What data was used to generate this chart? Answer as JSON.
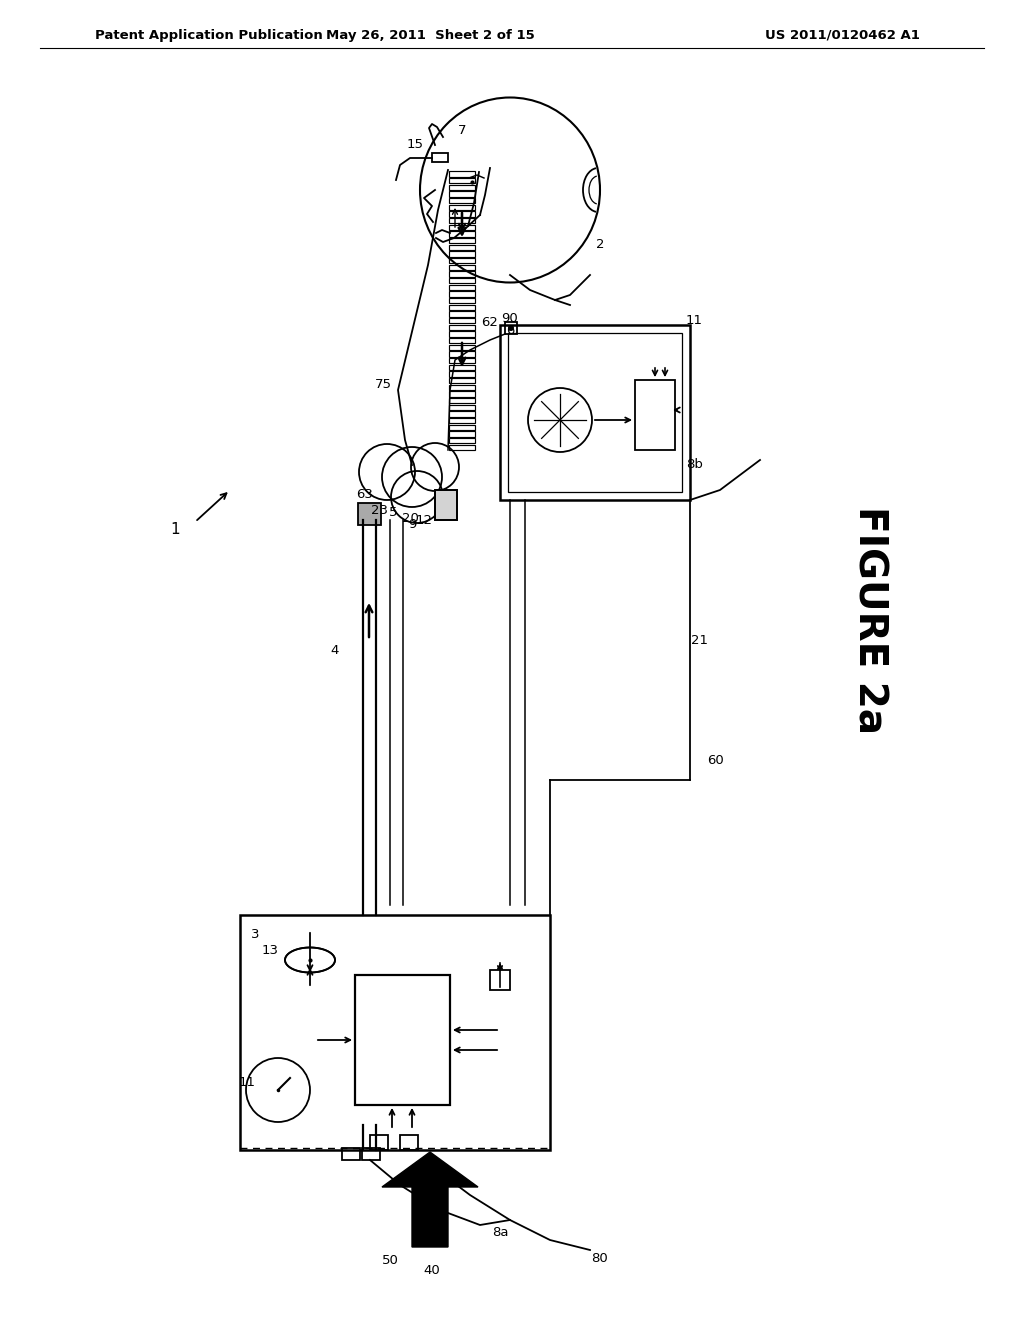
{
  "bg_color": "#ffffff",
  "header_left": "Patent Application Publication",
  "header_mid": "May 26, 2011  Sheet 2 of 15",
  "header_right": "US 2011/0120462 A1",
  "figure_label": "FIGURE 2a"
}
